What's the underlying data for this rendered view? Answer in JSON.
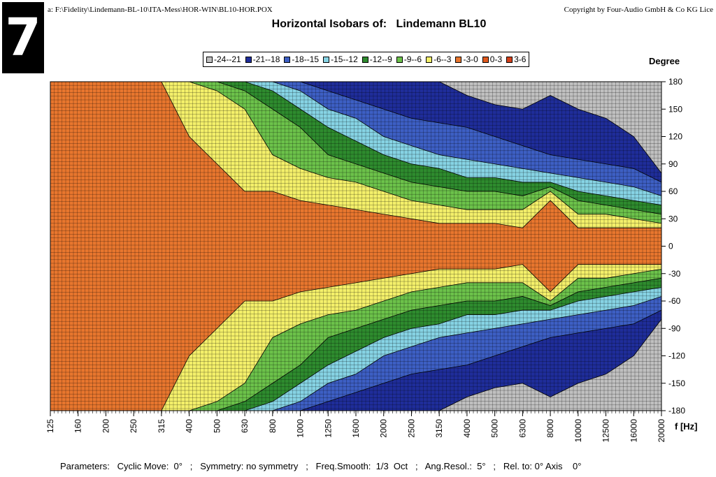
{
  "badge": "7",
  "filepath": "a:  F:\\Fidelity\\Lindemann-BL-10\\ITA-Mess\\HOR-WIN\\BL10-HOR.POX",
  "copyright": "Copyright by Four-Audio GmbH & Co KG   Lice",
  "title_prefix": "Horizontal Isobars of:",
  "title_name": "Lindemann  BL10",
  "parameters": "Parameters:   Cyclic Move:  0°   ;   Symmetry: no symmetry   ;   Freq.Smooth:  1/3  Oct   ;   Ang.Resol.:  5°   ;   Rel. to: 0° Axis    0°",
  "colors": {
    "grid": "#000000",
    "plot_bg": "#c9c9c9"
  },
  "chart_data": {
    "type": "heatmap",
    "title": "Horizontal Isobars of:  Lindemann  BL10",
    "xlabel": "f [Hz]",
    "ylabel": "Degree",
    "x_scale": "log",
    "x_ticks": [
      "125",
      "160",
      "200",
      "250",
      "315",
      "400",
      "500",
      "630",
      "800",
      "1000",
      "1250",
      "1600",
      "2000",
      "2500",
      "3150",
      "4000",
      "5000",
      "6300",
      "8000",
      "10000",
      "12500",
      "16000",
      "20000"
    ],
    "y_ticks": [
      "180",
      "150",
      "120",
      "90",
      "60",
      "30",
      "0",
      "-30",
      "-60",
      "-90",
      "-120",
      "-150",
      "-180"
    ],
    "ylim": [
      -180,
      180
    ],
    "legend_position": "top",
    "legend": [
      {
        "label": "-24--21",
        "color": "#c0c0c0"
      },
      {
        "label": "-21--18",
        "color": "#1f2d9a"
      },
      {
        "label": "-18--15",
        "color": "#3d5fc4"
      },
      {
        "label": "-15--12",
        "color": "#86d3e4"
      },
      {
        "label": "-12--9",
        "color": "#2e8b2e"
      },
      {
        "label": "-9--6",
        "color": "#6cc24a"
      },
      {
        "label": "-6--3",
        "color": "#f4f06a"
      },
      {
        "label": "-3-0",
        "color": "#e8762e"
      },
      {
        "label": "0-3",
        "color": "#e05a1e"
      },
      {
        "label": "3-6",
        "color": "#d4401a"
      }
    ],
    "contour_boundaries_deg": {
      "frequencies_hz": [
        125,
        160,
        200,
        250,
        315,
        400,
        500,
        630,
        800,
        1000,
        1250,
        1600,
        2000,
        2500,
        3150,
        4000,
        5000,
        6300,
        8000,
        10000,
        12500,
        16000,
        20000
      ],
      "-3dB": [
        180,
        180,
        180,
        180,
        180,
        120,
        90,
        60,
        60,
        50,
        45,
        40,
        35,
        30,
        25,
        25,
        25,
        20,
        50,
        20,
        20,
        20,
        20
      ],
      "-6dB": [
        180,
        180,
        180,
        180,
        180,
        180,
        170,
        150,
        100,
        85,
        75,
        70,
        60,
        50,
        45,
        40,
        40,
        40,
        60,
        35,
        35,
        30,
        25
      ],
      "-9dB": [
        180,
        180,
        180,
        180,
        180,
        180,
        180,
        170,
        150,
        130,
        100,
        90,
        80,
        70,
        65,
        60,
        60,
        55,
        65,
        50,
        45,
        40,
        35
      ],
      "-12dB": [
        180,
        180,
        180,
        180,
        180,
        180,
        180,
        180,
        170,
        150,
        130,
        115,
        100,
        90,
        85,
        75,
        75,
        70,
        70,
        60,
        55,
        50,
        45
      ],
      "-15dB": [
        180,
        180,
        180,
        180,
        180,
        180,
        180,
        180,
        180,
        170,
        150,
        140,
        120,
        110,
        100,
        95,
        90,
        85,
        80,
        75,
        70,
        65,
        55
      ],
      "-18dB": [
        180,
        180,
        180,
        180,
        180,
        180,
        180,
        180,
        180,
        180,
        170,
        160,
        150,
        140,
        135,
        130,
        120,
        110,
        100,
        95,
        90,
        85,
        70
      ],
      "-21dB": [
        180,
        180,
        180,
        180,
        180,
        180,
        180,
        180,
        180,
        180,
        180,
        180,
        180,
        180,
        180,
        165,
        155,
        150,
        165,
        150,
        140,
        120,
        80
      ]
    }
  }
}
